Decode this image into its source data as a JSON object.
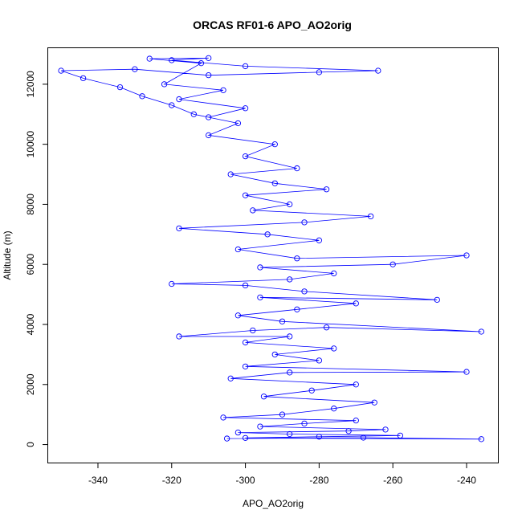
{
  "chart_data": {
    "type": "line",
    "title": "ORCAS RF01-6 APO_AO2orig",
    "xlabel": "APO_AO2orig",
    "ylabel": "Altitude (m)",
    "xlim": [
      -353.5,
      -231.5
    ],
    "ylim": [
      -600,
      13200
    ],
    "x_ticks": [
      -340,
      -320,
      -300,
      -280,
      -260,
      -240
    ],
    "y_ticks": [
      0,
      2000,
      4000,
      6000,
      8000,
      10000,
      12000
    ],
    "x_tick_labels": [
      "-340",
      "-320",
      "-300",
      "-280",
      "-260",
      "-240"
    ],
    "y_tick_labels": [
      "0",
      "2000",
      "4000",
      "6000",
      "8000",
      "10000",
      "12000"
    ],
    "grid": false,
    "legend": "none",
    "series": [
      {
        "color": "#0000ff",
        "marker": "open-circle",
        "line": true,
        "points": [
          [
            -305,
            200
          ],
          [
            -268,
            230
          ],
          [
            -236,
            180
          ],
          [
            -300,
            220
          ],
          [
            -280,
            260
          ],
          [
            -258,
            300
          ],
          [
            -288,
            350
          ],
          [
            -302,
            400
          ],
          [
            -272,
            450
          ],
          [
            -262,
            500
          ],
          [
            -296,
            600
          ],
          [
            -284,
            700
          ],
          [
            -270,
            800
          ],
          [
            -306,
            900
          ],
          [
            -290,
            1000
          ],
          [
            -276,
            1200
          ],
          [
            -265,
            1400
          ],
          [
            -295,
            1600
          ],
          [
            -282,
            1800
          ],
          [
            -270,
            2000
          ],
          [
            -304,
            2200
          ],
          [
            -288,
            2400
          ],
          [
            -240,
            2420
          ],
          [
            -300,
            2600
          ],
          [
            -280,
            2800
          ],
          [
            -292,
            3000
          ],
          [
            -276,
            3200
          ],
          [
            -300,
            3400
          ],
          [
            -288,
            3600
          ],
          [
            -318,
            3600
          ],
          [
            -298,
            3800
          ],
          [
            -278,
            3900
          ],
          [
            -236,
            3760
          ],
          [
            -290,
            4100
          ],
          [
            -302,
            4300
          ],
          [
            -286,
            4500
          ],
          [
            -270,
            4700
          ],
          [
            -296,
            4900
          ],
          [
            -248,
            4820
          ],
          [
            -284,
            5100
          ],
          [
            -300,
            5300
          ],
          [
            -320,
            5350
          ],
          [
            -288,
            5500
          ],
          [
            -276,
            5700
          ],
          [
            -296,
            5900
          ],
          [
            -260,
            6000
          ],
          [
            -240,
            6300
          ],
          [
            -286,
            6200
          ],
          [
            -302,
            6500
          ],
          [
            -280,
            6800
          ],
          [
            -294,
            7000
          ],
          [
            -318,
            7200
          ],
          [
            -284,
            7400
          ],
          [
            -266,
            7600
          ],
          [
            -298,
            7800
          ],
          [
            -288,
            8000
          ],
          [
            -300,
            8300
          ],
          [
            -278,
            8500
          ],
          [
            -292,
            8700
          ],
          [
            -304,
            9000
          ],
          [
            -286,
            9200
          ],
          [
            -300,
            9600
          ],
          [
            -292,
            10000
          ],
          [
            -310,
            10300
          ],
          [
            -302,
            10700
          ],
          [
            -314,
            11000
          ],
          [
            -320,
            11300
          ],
          [
            -328,
            11600
          ],
          [
            -334,
            11900
          ],
          [
            -344,
            12200
          ],
          [
            -350,
            12450
          ],
          [
            -330,
            12500
          ],
          [
            -310,
            12300
          ],
          [
            -280,
            12400
          ],
          [
            -264,
            12450
          ],
          [
            -300,
            12600
          ],
          [
            -320,
            12800
          ],
          [
            -310,
            12870
          ],
          [
            -326,
            12850
          ],
          [
            -312,
            12700
          ],
          [
            -322,
            12000
          ],
          [
            -306,
            11800
          ],
          [
            -318,
            11500
          ],
          [
            -300,
            11200
          ],
          [
            -310,
            10900
          ]
        ]
      }
    ]
  }
}
